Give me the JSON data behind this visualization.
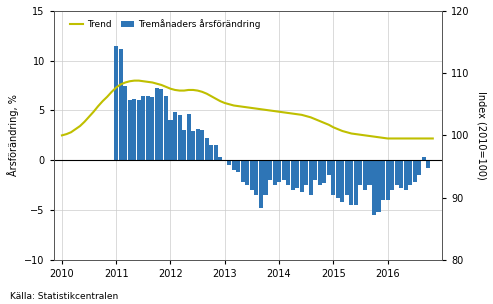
{
  "ylabel_left": "Årsförändring, %",
  "ylabel_right": "Index (2010=100)",
  "source": "Källa: Statistikcentralen",
  "ylim_left": [
    -10,
    15
  ],
  "ylim_right": [
    80,
    120
  ],
  "yticks_left": [
    -10,
    -5,
    0,
    5,
    10,
    15
  ],
  "yticks_right": [
    80,
    90,
    100,
    110,
    120
  ],
  "bar_color": "#2E75B6",
  "trend_color": "#BFBF00",
  "legend_trend": "Trend",
  "bar_x": [
    2010.083,
    2010.167,
    2010.25,
    2010.333,
    2010.417,
    2010.5,
    2010.583,
    2010.667,
    2010.75,
    2010.833,
    2010.917,
    2011.0,
    2011.083,
    2011.167,
    2011.25,
    2011.333,
    2011.417,
    2011.5,
    2011.583,
    2011.667,
    2011.75,
    2011.833,
    2011.917,
    2012.0,
    2012.083,
    2012.167,
    2012.25,
    2012.333,
    2012.417,
    2012.5,
    2012.583,
    2012.667,
    2012.75,
    2012.833,
    2012.917,
    2013.0,
    2013.083,
    2013.167,
    2013.25,
    2013.333,
    2013.417,
    2013.5,
    2013.583,
    2013.667,
    2013.75,
    2013.833,
    2013.917,
    2014.0,
    2014.083,
    2014.167,
    2014.25,
    2014.333,
    2014.417,
    2014.5,
    2014.583,
    2014.667,
    2014.75,
    2014.833,
    2014.917,
    2015.0,
    2015.083,
    2015.167,
    2015.25,
    2015.333,
    2015.417,
    2015.5,
    2015.583,
    2015.667,
    2015.75,
    2015.833,
    2015.917,
    2016.0,
    2016.083,
    2016.167,
    2016.25,
    2016.333,
    2016.417,
    2016.5,
    2016.583,
    2016.667,
    2016.75
  ],
  "bar_values": [
    0.0,
    0.0,
    0.0,
    0.0,
    0.0,
    0.0,
    0.0,
    0.0,
    0.0,
    0.0,
    0.0,
    11.5,
    11.2,
    7.5,
    6.1,
    6.2,
    6.1,
    6.5,
    6.5,
    6.4,
    7.3,
    7.2,
    6.5,
    4.0,
    4.8,
    4.5,
    3.0,
    4.6,
    2.9,
    3.1,
    3.0,
    2.2,
    1.5,
    1.5,
    0.3,
    -0.1,
    -0.5,
    -1.0,
    -1.2,
    -2.2,
    -2.5,
    -3.0,
    -3.5,
    -4.8,
    -3.5,
    -2.0,
    -2.5,
    -2.2,
    -2.0,
    -2.5,
    -3.0,
    -2.8,
    -3.2,
    -2.5,
    -3.5,
    -2.0,
    -2.5,
    -2.3,
    -1.5,
    -3.5,
    -3.8,
    -4.2,
    -3.5,
    -4.5,
    -4.5,
    -2.5,
    -3.0,
    -2.5,
    -5.5,
    -5.2,
    -4.0,
    -4.0,
    -3.0,
    -2.5,
    -2.8,
    -3.0,
    -2.5,
    -2.2,
    -1.5,
    0.3,
    -0.8
  ],
  "trend_x": [
    2010.0,
    2010.083,
    2010.167,
    2010.25,
    2010.333,
    2010.417,
    2010.5,
    2010.583,
    2010.667,
    2010.75,
    2010.833,
    2010.917,
    2011.0,
    2011.083,
    2011.167,
    2011.25,
    2011.333,
    2011.417,
    2011.5,
    2011.583,
    2011.667,
    2011.75,
    2011.833,
    2011.917,
    2012.0,
    2012.083,
    2012.167,
    2012.25,
    2012.333,
    2012.417,
    2012.5,
    2012.583,
    2012.667,
    2012.75,
    2012.833,
    2012.917,
    2013.0,
    2013.083,
    2013.167,
    2013.25,
    2013.333,
    2013.417,
    2013.5,
    2013.583,
    2013.667,
    2013.75,
    2013.833,
    2013.917,
    2014.0,
    2014.083,
    2014.167,
    2014.25,
    2014.333,
    2014.417,
    2014.5,
    2014.583,
    2014.667,
    2014.75,
    2014.833,
    2014.917,
    2015.0,
    2015.083,
    2015.167,
    2015.25,
    2015.333,
    2015.417,
    2015.5,
    2015.583,
    2015.667,
    2015.75,
    2015.833,
    2015.917,
    2016.0,
    2016.083,
    2016.167,
    2016.25,
    2016.333,
    2016.417,
    2016.5,
    2016.583,
    2016.667,
    2016.75,
    2016.833
  ],
  "trend_y_index": [
    100.0,
    100.2,
    100.5,
    101.0,
    101.5,
    102.2,
    103.0,
    103.8,
    104.7,
    105.5,
    106.2,
    107.0,
    107.7,
    108.2,
    108.5,
    108.7,
    108.8,
    108.8,
    108.7,
    108.6,
    108.5,
    108.3,
    108.1,
    107.8,
    107.5,
    107.3,
    107.2,
    107.2,
    107.3,
    107.3,
    107.2,
    107.0,
    106.7,
    106.3,
    105.9,
    105.5,
    105.2,
    105.0,
    104.8,
    104.7,
    104.6,
    104.5,
    104.4,
    104.3,
    104.2,
    104.1,
    104.0,
    103.9,
    103.8,
    103.7,
    103.6,
    103.5,
    103.4,
    103.3,
    103.1,
    102.9,
    102.6,
    102.3,
    102.0,
    101.7,
    101.3,
    101.0,
    100.7,
    100.5,
    100.3,
    100.2,
    100.1,
    100.0,
    99.9,
    99.8,
    99.7,
    99.6,
    99.5,
    99.5,
    99.5,
    99.5,
    99.5,
    99.5,
    99.5,
    99.5,
    99.5,
    99.5,
    99.5
  ],
  "xticks": [
    2010,
    2011,
    2012,
    2013,
    2014,
    2015,
    2016
  ],
  "xlim": [
    2009.85,
    2017.0
  ],
  "bar_width": 0.075
}
